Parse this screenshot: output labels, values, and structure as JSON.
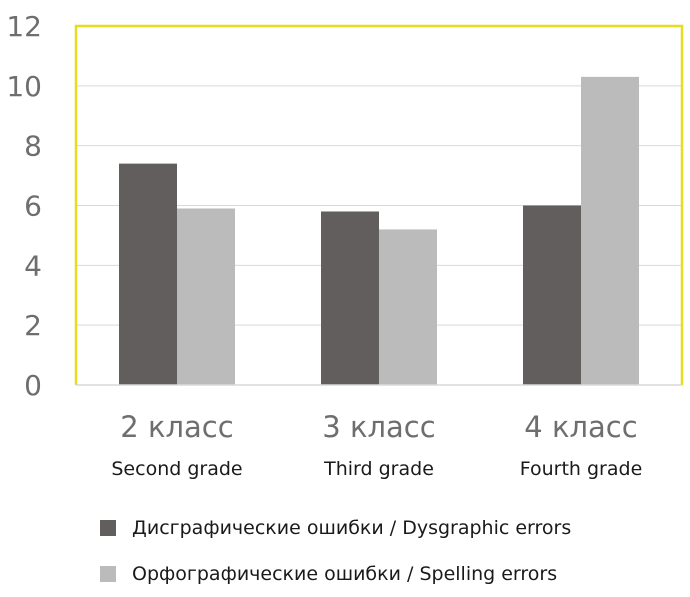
{
  "chart_data": {
    "type": "bar",
    "categories": [
      "2 класс",
      "3 класс",
      "4 класс"
    ],
    "category_sublabels": [
      "Second grade",
      "Third grade",
      "Fourth grade"
    ],
    "series": [
      {
        "name": "Дисграфические ошибки / Dysgraphic errors",
        "color": "#615e5d",
        "values": [
          7.4,
          5.8,
          6.0
        ]
      },
      {
        "name": "Орфографические ошибки / Spelling errors",
        "color": "#bcbbbb",
        "values": [
          5.9,
          5.2,
          10.3
        ]
      }
    ],
    "yticks": [
      "0",
      "2",
      "4",
      "6",
      "8",
      "10",
      "12"
    ],
    "ylim": [
      0,
      12
    ],
    "grid": true,
    "legend_position": "bottom",
    "frame_color": "#e6dc20",
    "grid_color": "#d9d9d9"
  }
}
